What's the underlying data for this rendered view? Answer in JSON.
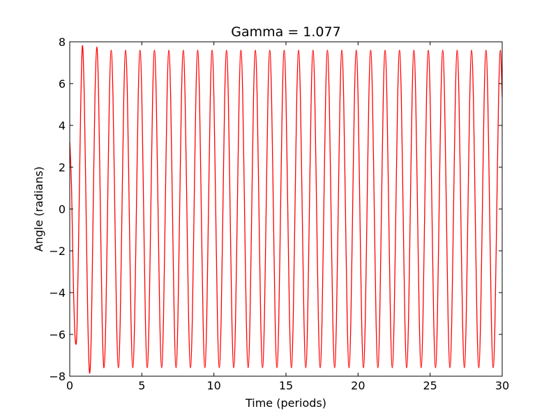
{
  "chart_data": {
    "type": "line",
    "title": "Gamma = 1.077",
    "xlabel": "Time (periods)",
    "ylabel": "Angle (radians)",
    "xlim": [
      0,
      30
    ],
    "ylim": [
      -8,
      8
    ],
    "xticks": [
      0,
      5,
      10,
      15,
      20,
      25,
      30
    ],
    "yticks": [
      {
        "value": -8,
        "label": "−8"
      },
      {
        "value": -6,
        "label": "−6"
      },
      {
        "value": -4,
        "label": "−4"
      },
      {
        "value": -2,
        "label": "−2"
      },
      0,
      2,
      4,
      6,
      8
    ],
    "grid": false,
    "x": [
      0,
      0.125,
      0.25,
      0.375,
      0.5,
      0.625,
      0.75,
      0.875,
      1,
      1.125,
      1.25,
      1.375,
      1.5,
      1.625,
      1.75,
      1.875,
      2,
      2.125,
      2.25,
      2.375,
      2.5,
      2.625,
      2.75,
      2.875,
      3,
      3.125,
      3.25,
      3.375,
      3.5,
      3.625,
      3.75,
      3.875,
      4,
      4.125,
      4.25,
      4.375,
      4.5,
      4.625,
      4.75,
      4.875,
      5,
      5.125,
      5.25,
      5.375,
      5.5,
      5.625,
      5.75,
      5.875,
      6,
      6.125,
      6.25,
      6.375,
      6.5,
      6.625,
      6.75,
      6.875,
      7,
      7.125,
      7.25,
      7.375,
      7.5,
      7.625,
      7.75,
      7.875,
      8,
      8.125,
      8.25,
      8.375,
      8.5,
      8.625,
      8.75,
      8.875,
      9,
      9.125,
      9.25,
      9.375,
      9.5,
      9.625,
      9.75,
      9.875,
      10,
      10.125,
      10.25,
      10.375,
      10.5,
      10.625,
      10.75,
      10.875,
      11,
      11.125,
      11.25,
      11.375,
      11.5,
      11.625,
      11.75,
      11.875,
      12,
      12.125,
      12.25,
      12.375,
      12.5,
      12.625,
      12.75,
      12.875,
      13,
      13.125,
      13.25,
      13.375,
      13.5,
      13.625,
      13.75,
      13.875,
      14,
      14.125,
      14.25,
      14.375,
      14.5,
      14.625,
      14.75,
      14.875,
      15,
      15.125,
      15.25,
      15.375,
      15.5,
      15.625,
      15.75,
      15.875,
      16,
      16.125,
      16.25,
      16.375,
      16.5,
      16.625,
      16.75,
      16.875,
      17,
      17.125,
      17.25,
      17.375,
      17.5,
      17.625,
      17.75,
      17.875,
      18,
      18.125,
      18.25,
      18.375,
      18.5,
      18.625,
      18.75,
      18.875,
      19,
      19.125,
      19.25,
      19.375,
      19.5,
      19.625,
      19.75,
      19.875,
      20,
      20.125,
      20.25,
      20.375,
      20.5,
      20.625,
      20.75,
      20.875,
      21,
      21.125,
      21.25,
      21.375,
      21.5,
      21.625,
      21.75,
      21.875,
      22,
      22.125,
      22.25,
      22.375,
      22.5,
      22.625,
      22.75,
      22.875,
      23,
      23.125,
      23.25,
      23.375,
      23.5,
      23.625,
      23.75,
      23.875,
      24,
      24.125,
      24.25,
      24.375,
      24.5,
      24.625,
      24.75,
      24.875,
      25,
      25.125,
      25.25,
      25.375,
      25.5,
      25.625,
      25.75,
      25.875,
      26,
      26.125,
      26.25,
      26.375,
      26.5,
      26.625,
      26.75,
      26.875,
      27,
      27.125,
      27.25,
      27.375,
      27.5,
      27.625,
      27.75,
      27.875,
      28,
      28.125,
      28.25,
      28.375,
      28.5,
      28.625,
      28.75,
      28.875,
      29,
      29.125,
      29.25,
      29.375,
      29.5,
      29.625,
      29.75,
      29.875,
      30
    ],
    "series": [
      {
        "color": "#ff0000",
        "values": [
          3.2,
          1.0,
          -3.5,
          -6.2,
          -5.8,
          -1.0,
          4.5,
          7.8,
          5.6,
          0.3,
          -5.2,
          -7.85,
          -5.8,
          0,
          5.4,
          7.75,
          5.5,
          0,
          -5.4,
          -7.6,
          -5.37,
          0,
          5.37,
          7.6,
          5.37,
          0,
          -5.37,
          -7.6,
          -5.37,
          0,
          5.37,
          7.6,
          5.37,
          0,
          -5.37,
          -7.6,
          -5.37,
          0,
          5.37,
          7.6,
          5.37,
          0,
          -5.37,
          -7.6,
          -5.37,
          0,
          5.37,
          7.6,
          5.37,
          0,
          -5.37,
          -7.6,
          -5.37,
          0,
          5.37,
          7.6,
          5.37,
          0,
          -5.37,
          -7.6,
          -5.37,
          0,
          5.37,
          7.6,
          5.37,
          0,
          -5.37,
          -7.6,
          -5.37,
          0,
          5.37,
          7.6,
          5.37,
          0,
          -5.37,
          -7.6,
          -5.37,
          0,
          5.37,
          7.6,
          5.37,
          0,
          -5.37,
          -7.6,
          -5.37,
          0,
          5.37,
          7.6,
          5.37,
          0,
          -5.37,
          -7.6,
          -5.37,
          0,
          5.37,
          7.6,
          5.37,
          0,
          -5.37,
          -7.6,
          -5.37,
          0,
          5.37,
          7.6,
          5.37,
          0,
          -5.37,
          -7.6,
          -5.37,
          0,
          5.37,
          7.6,
          5.37,
          0,
          -5.37,
          -7.6,
          -5.37,
          0,
          5.37,
          7.6,
          5.37,
          0,
          -5.37,
          -7.6,
          -5.37,
          0,
          5.37,
          7.6,
          5.37,
          0,
          -5.37,
          -7.6,
          -5.37,
          0,
          5.37,
          7.6,
          5.37,
          0,
          -5.37,
          -7.6,
          -5.37,
          0,
          5.37,
          7.6,
          5.37,
          0,
          -5.37,
          -7.6,
          -5.37,
          0,
          5.37,
          7.6,
          5.37,
          0,
          -5.37,
          -7.6,
          -5.37,
          0,
          5.37,
          7.6,
          5.37,
          0,
          -5.37,
          -7.6,
          -5.37,
          0,
          5.37,
          7.6,
          5.37,
          0,
          -5.37,
          -7.6,
          -5.37,
          0,
          5.37,
          7.6,
          5.37,
          0,
          -5.37,
          -7.6,
          -5.37,
          0,
          5.37,
          7.6,
          5.37,
          0,
          -5.37,
          -7.6,
          -5.37,
          0,
          5.37,
          7.6,
          5.37,
          0,
          -5.37,
          -7.6,
          -5.37,
          0,
          5.37,
          7.6,
          5.37,
          0,
          -5.37,
          -7.6,
          -5.37,
          0,
          5.37,
          7.6,
          5.37,
          0,
          -5.37,
          -7.6,
          -5.37,
          0,
          5.37,
          7.6,
          5.37,
          0,
          -5.37,
          -7.6,
          -5.37,
          0,
          5.37,
          7.6,
          5.37,
          0,
          -5.37,
          -7.6,
          -5.37,
          0,
          5.37,
          7.6,
          5.37,
          0,
          -5.37,
          -7.6,
          -5.37,
          0,
          5.37,
          7.6,
          5.37
        ]
      }
    ]
  }
}
